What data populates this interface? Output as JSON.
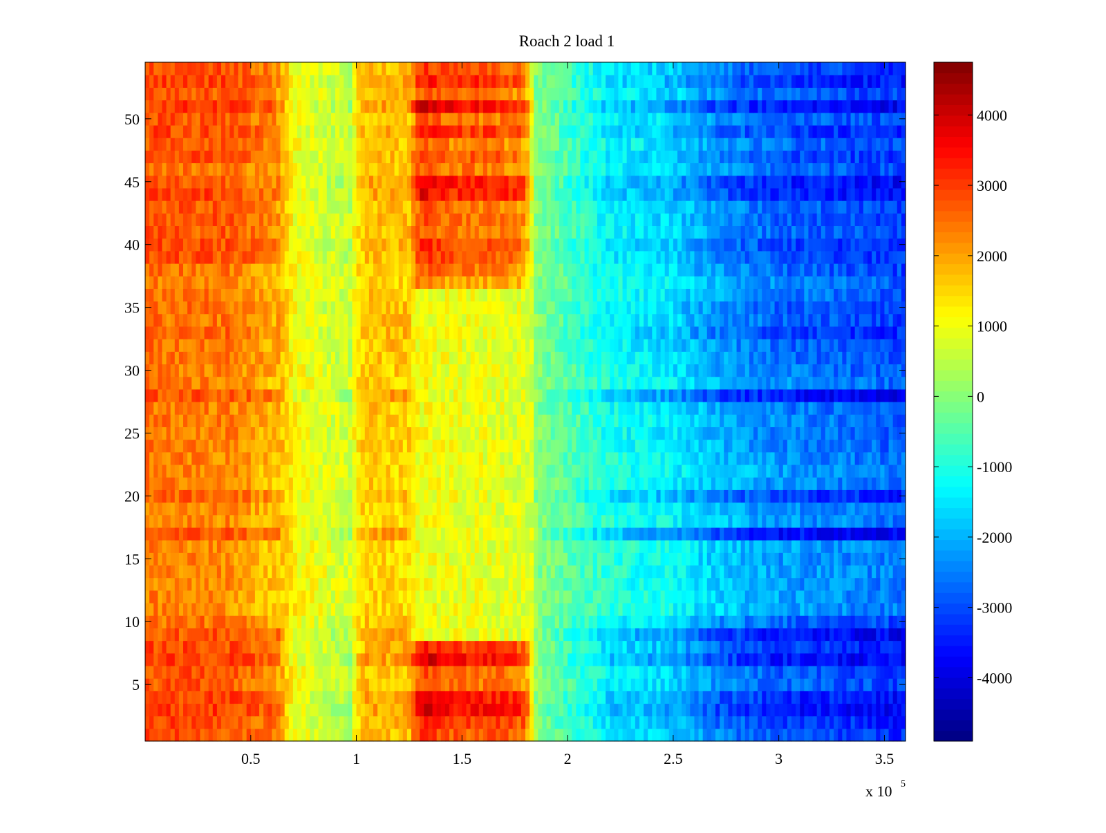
{
  "chart_data": {
    "type": "heatmap",
    "title": "Roach 2 load 1",
    "xlabel": "",
    "ylabel": "",
    "x_multiplier_label": "x 10",
    "x_multiplier_exponent": "5",
    "xlim": [
      0,
      3.6
    ],
    "ylim": [
      0.5,
      54.5
    ],
    "x_ticks": [
      0.5,
      1,
      1.5,
      2,
      2.5,
      3,
      3.5
    ],
    "x_tick_labels": [
      "0.5",
      "1",
      "1.5",
      "2",
      "2.5",
      "3",
      "3.5"
    ],
    "y_ticks": [
      5,
      10,
      15,
      20,
      25,
      30,
      35,
      40,
      45,
      50
    ],
    "y_tick_labels": [
      "5",
      "10",
      "15",
      "20",
      "25",
      "30",
      "35",
      "40",
      "45",
      "50"
    ],
    "colorbar": {
      "colormap": "jet",
      "range": [
        -4900,
        4750
      ],
      "ticks": [
        4000,
        3000,
        2000,
        1000,
        0,
        -1000,
        -2000,
        -3000,
        -4000
      ],
      "tick_labels": [
        "4000",
        "3000",
        "2000",
        "1000",
        "0",
        "-1000",
        "-2000",
        "-3000",
        "-4000"
      ]
    },
    "rows": 54,
    "column_profile": {
      "x": [
        0.0,
        0.4,
        0.62,
        0.7,
        0.85,
        0.97,
        1.0,
        1.05,
        1.25,
        1.3,
        1.45,
        1.7,
        1.8,
        1.85,
        2.0,
        2.2,
        2.5,
        2.7,
        3.0,
        3.6
      ],
      "band_value": [
        3000,
        3000,
        2600,
        1000,
        500,
        300,
        1500,
        2000,
        2000,
        4000,
        3500,
        3500,
        3200,
        0,
        -800,
        -1800,
        -2200,
        -3000,
        -3500,
        -3800
      ],
      "base_value": [
        2400,
        2200,
        1500,
        1300,
        1100,
        900,
        1200,
        1300,
        1200,
        1000,
        800,
        600,
        400,
        0,
        -200,
        -500,
        -800,
        -1100,
        -1500,
        -2000
      ]
    },
    "row_intensity_notes": "1.0 = strongest rows (darkest red on left, darkest blue on right); ~0.3 = mildest rows",
    "row_intensity": [
      0.7,
      0.8,
      1.0,
      0.9,
      0.6,
      0.65,
      1.0,
      0.8,
      1.0,
      0.6,
      0.3,
      0.3,
      0.35,
      0.3,
      0.35,
      0.3,
      1.0,
      0.35,
      0.4,
      0.8,
      0.4,
      0.35,
      0.4,
      0.45,
      0.5,
      0.45,
      0.5,
      1.0,
      0.4,
      0.5,
      0.55,
      0.6,
      0.75,
      0.6,
      0.65,
      0.5,
      0.45,
      0.6,
      0.7,
      0.75,
      0.6,
      0.65,
      0.6,
      0.9,
      0.95,
      0.6,
      0.7,
      0.55,
      0.8,
      0.6,
      1.0,
      0.6,
      0.85,
      0.7
    ],
    "left_red_block_rows": [
      1,
      2,
      3,
      4,
      5,
      6,
      7,
      8,
      39,
      40,
      41,
      42,
      43,
      44,
      47,
      48,
      49,
      50,
      51,
      52,
      53,
      54
    ],
    "right_block_row_ranges": [
      [
        1,
        8
      ],
      [
        37,
        54
      ]
    ]
  }
}
